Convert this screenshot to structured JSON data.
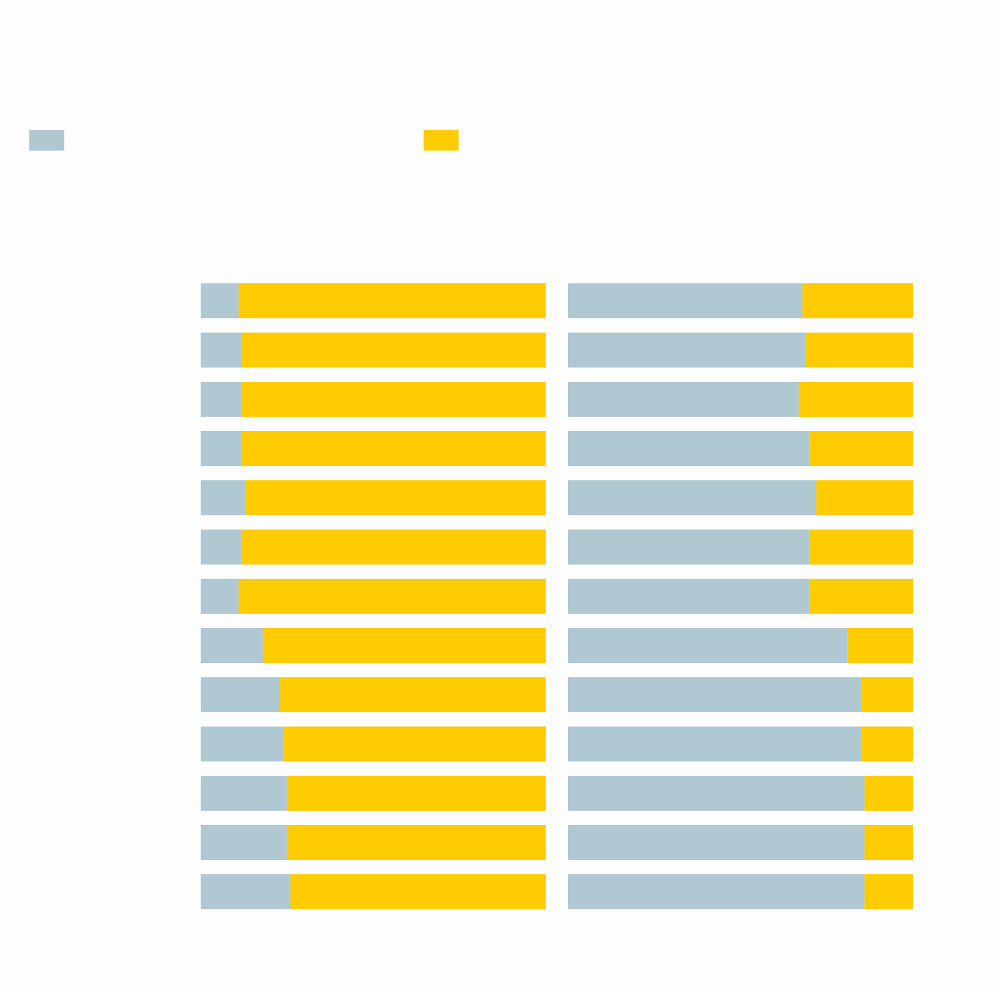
{
  "chart_data": [
    {
      "type": "bar",
      "orientation": "horizontal",
      "stacked": true,
      "xlim": [
        0,
        100
      ],
      "series": [
        {
          "color": "#b0c8d2",
          "values": [
            11,
            12,
            12,
            12,
            13,
            12,
            11,
            18,
            23,
            24,
            25,
            25,
            26
          ]
        },
        {
          "color": "#fecc00",
          "values": [
            89,
            88,
            88,
            88,
            87,
            88,
            89,
            82,
            77,
            76,
            75,
            75,
            74
          ]
        }
      ]
    },
    {
      "type": "bar",
      "orientation": "horizontal",
      "stacked": true,
      "xlim": [
        0,
        100
      ],
      "series": [
        {
          "color": "#b0c8d2",
          "values": [
            68,
            69,
            67,
            70,
            72,
            70,
            70,
            81,
            85,
            85,
            86,
            86,
            86
          ]
        },
        {
          "color": "#fecc00",
          "values": [
            32,
            31,
            33,
            30,
            28,
            30,
            30,
            19,
            15,
            15,
            14,
            14,
            14
          ]
        }
      ]
    }
  ]
}
